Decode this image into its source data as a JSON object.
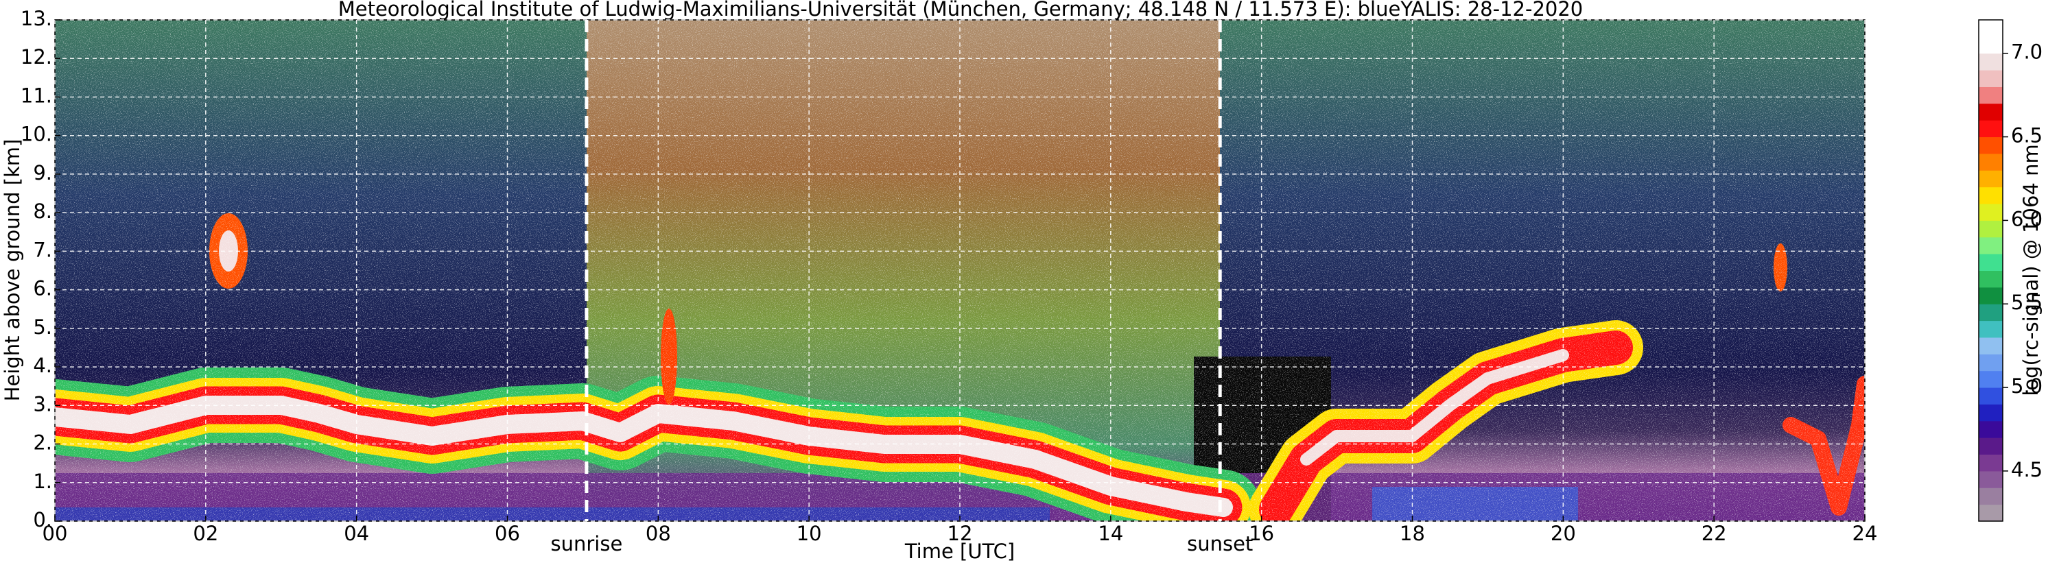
{
  "chart_data": {
    "type": "heatmap",
    "title": "Meteorological Institute of Ludwig-Maximilians-Universität (München, Germany; 48.148 N / 11.573 E):    blueYALIS: 28-12-2020",
    "x_label": "Time [UTC]",
    "y_label": "Height above ground [km]",
    "colorbar_label": "log(rc-signal) @ 1064 nm",
    "xlim": [
      0,
      24
    ],
    "xticks": [
      {
        "value": 0,
        "label": "00"
      },
      {
        "value": 2,
        "label": "02"
      },
      {
        "value": 4,
        "label": "04"
      },
      {
        "value": 6,
        "label": "06"
      },
      {
        "value": 8,
        "label": "08"
      },
      10,
      12,
      14,
      16,
      18,
      20,
      22,
      24
    ],
    "ylim": [
      0,
      13
    ],
    "yticks": [
      {
        "value": 0,
        "label": "0."
      },
      {
        "value": 1,
        "label": "1."
      },
      {
        "value": 2,
        "label": "2."
      },
      {
        "value": 3,
        "label": "3."
      },
      {
        "value": 4,
        "label": "4."
      },
      {
        "value": 5,
        "label": "5."
      },
      {
        "value": 6,
        "label": "6."
      },
      {
        "value": 7,
        "label": "7."
      },
      {
        "value": 8,
        "label": "8."
      },
      {
        "value": 9,
        "label": "9."
      },
      {
        "value": 10,
        "label": "10."
      },
      {
        "value": 11,
        "label": "11."
      },
      {
        "value": 12,
        "label": "12."
      },
      {
        "value": 13,
        "label": "13."
      }
    ],
    "clim": [
      4.2,
      7.2
    ],
    "cticks": [
      4.5,
      {
        "value": 5,
        "label": "5.0"
      },
      5.5,
      {
        "value": 6,
        "label": "6.0"
      },
      6.5,
      {
        "value": 7,
        "label": "7.0"
      }
    ],
    "colormap": [
      "#a89aa8",
      "#9a7fa0",
      "#8a5a9a",
      "#7a3a92",
      "#5a1a8a",
      "#3a0a9a",
      "#2020c0",
      "#3050e0",
      "#5080f0",
      "#70a0f0",
      "#90c0f0",
      "#40c0c0",
      "#20a080",
      "#109040",
      "#30c060",
      "#40e090",
      "#80f080",
      "#b0f040",
      "#e0f020",
      "#ffe000",
      "#ffb000",
      "#ff8000",
      "#ff5000",
      "#ff1010",
      "#e00000",
      "#f08080",
      "#f0c0c0",
      "#f0e0e0",
      "#ffffff",
      "#ffffff"
    ],
    "grid": true,
    "annotations": [
      {
        "text": "sunrise",
        "x": 7.05
      },
      {
        "text": "sunset",
        "x": 15.45
      }
    ]
  }
}
